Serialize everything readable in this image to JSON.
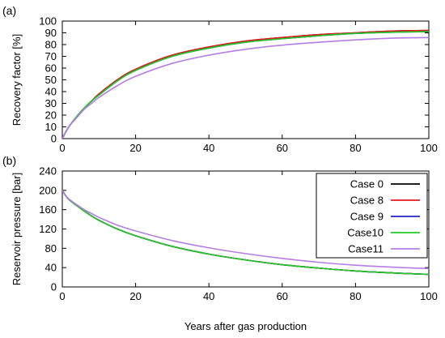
{
  "chart_data": [
    {
      "type": "line",
      "panel_label": "(a)",
      "xlabel": "",
      "ylabel": "Recovery factor [%]",
      "xlim": [
        0,
        100
      ],
      "ylim": [
        0,
        100
      ],
      "xticks": [
        0,
        20,
        40,
        60,
        80,
        100
      ],
      "yticks": [
        0,
        10,
        20,
        30,
        40,
        50,
        60,
        70,
        80,
        90,
        100
      ],
      "grid": false,
      "x": [
        0,
        1,
        2,
        4,
        6,
        8,
        10,
        15,
        20,
        30,
        40,
        50,
        60,
        70,
        80,
        90,
        100
      ],
      "series": [
        {
          "name": "Case 0",
          "color": "#000000",
          "values": [
            0,
            6,
            11,
            19,
            26,
            32,
            38,
            50,
            59,
            71,
            78,
            83,
            86,
            88.5,
            90,
            91.5,
            92
          ]
        },
        {
          "name": "Case 8",
          "color": "#e41a1c",
          "values": [
            0,
            6,
            11,
            19,
            26,
            32,
            38,
            50,
            59,
            71,
            78,
            83,
            86,
            88.5,
            90,
            91.5,
            92
          ]
        },
        {
          "name": "Case 9",
          "color": "#2222cc",
          "values": [
            0,
            6,
            11,
            19,
            26,
            32,
            37,
            49,
            58,
            70,
            77,
            82,
            85,
            87.5,
            89.5,
            90.5,
            91
          ]
        },
        {
          "name": "Case10",
          "color": "#22cc22",
          "values": [
            0,
            6,
            11,
            19,
            26,
            32,
            37,
            49,
            58,
            70,
            77,
            82,
            85,
            87.5,
            89.5,
            90.5,
            91
          ]
        },
        {
          "name": "Case11",
          "color": "#b57ee6",
          "values": [
            0,
            6,
            11,
            18,
            25,
            30,
            35,
            45,
            53,
            64,
            71,
            76,
            79.5,
            82,
            84,
            85.5,
            86
          ]
        }
      ]
    },
    {
      "type": "line",
      "panel_label": "(b)",
      "xlabel": "Years after gas production",
      "ylabel": "Reservoir pressure [bar]",
      "xlim": [
        0,
        100
      ],
      "ylim": [
        0,
        240
      ],
      "xticks": [
        0,
        20,
        40,
        60,
        80,
        100
      ],
      "yticks": [
        0,
        40,
        80,
        120,
        160,
        200,
        240
      ],
      "grid": false,
      "legend_position": "top-right",
      "x": [
        0,
        1,
        2,
        4,
        6,
        8,
        10,
        15,
        20,
        30,
        40,
        50,
        60,
        70,
        80,
        90,
        100
      ],
      "series": [
        {
          "name": "Case 0",
          "color": "#000000",
          "values": [
            200,
            188,
            180,
            168,
            157,
            147,
            138,
            120,
            106,
            84,
            68,
            56,
            46,
            39,
            33,
            29,
            26
          ]
        },
        {
          "name": "Case 8",
          "color": "#e41a1c",
          "values": [
            200,
            188,
            180,
            168,
            157,
            147,
            138,
            120,
            106,
            84,
            68,
            56,
            46,
            39,
            33,
            29,
            26
          ]
        },
        {
          "name": "Case 9",
          "color": "#2222cc",
          "values": [
            200,
            188,
            180,
            168,
            157,
            147,
            138,
            120,
            106,
            84,
            68,
            56,
            46,
            39,
            33,
            29,
            26
          ]
        },
        {
          "name": "Case10",
          "color": "#22cc22",
          "values": [
            200,
            188,
            180,
            168,
            157,
            147,
            138,
            120,
            106,
            84,
            68,
            56,
            46,
            39,
            33,
            29,
            26
          ]
        },
        {
          "name": "Case11",
          "color": "#b57ee6",
          "values": [
            200,
            188,
            181,
            170,
            160,
            152,
            144,
            128,
            116,
            96,
            81,
            69,
            59,
            51,
            45,
            41,
            38
          ]
        }
      ]
    }
  ]
}
